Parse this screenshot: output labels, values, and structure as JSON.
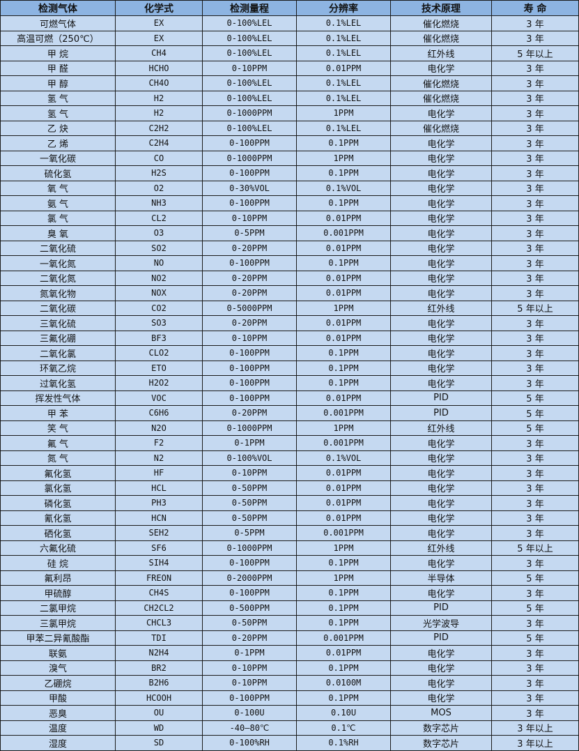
{
  "headers": [
    "检测气体",
    "化学式",
    "检测量程",
    "分辨率",
    "技术原理",
    "寿 命"
  ],
  "colors": {
    "header_bg": "#8DB4E2",
    "row_bg": "#C5D9F1",
    "border": "#1a1a1a"
  },
  "rows": [
    [
      "可燃气体",
      "EX",
      "0-100%LEL",
      "0.1%LEL",
      "催化燃烧",
      "3 年"
    ],
    [
      "高温可燃（250℃）",
      "EX",
      "0-100%LEL",
      "0.1%LEL",
      "催化燃烧",
      "3 年"
    ],
    [
      "甲 烷",
      "CH4",
      "0-100%LEL",
      "0.1%LEL",
      "红外线",
      "5 年以上"
    ],
    [
      "甲 醛",
      "HCHO",
      "0-10PPM",
      "0.01PPM",
      "电化学",
      "3 年"
    ],
    [
      "甲 醇",
      "CH4O",
      "0-100%LEL",
      "0.1%LEL",
      "催化燃烧",
      "3 年"
    ],
    [
      "氢 气",
      "H2",
      "0-100%LEL",
      "0.1%LEL",
      "催化燃烧",
      "3 年"
    ],
    [
      "氢 气",
      "H2",
      "0-1000PPM",
      "1PPM",
      "电化学",
      "3 年"
    ],
    [
      "乙 炔",
      "C2H2",
      "0-100%LEL",
      "0.1%LEL",
      "催化燃烧",
      "3 年"
    ],
    [
      "乙 烯",
      "C2H4",
      "0-100PPM",
      "0.1PPM",
      "电化学",
      "3 年"
    ],
    [
      "一氧化碳",
      "CO",
      "0-1000PPM",
      "1PPM",
      "电化学",
      "3 年"
    ],
    [
      "硫化氢",
      "H2S",
      "0-100PPM",
      "0.1PPM",
      "电化学",
      "3 年"
    ],
    [
      "氧 气",
      "O2",
      "0-30%VOL",
      "0.1%VOL",
      "电化学",
      "3 年"
    ],
    [
      "氨 气",
      "NH3",
      "0-100PPM",
      "0.1PPM",
      "电化学",
      "3 年"
    ],
    [
      "氯 气",
      "CL2",
      "0-10PPM",
      "0.01PPM",
      "电化学",
      "3 年"
    ],
    [
      "臭 氧",
      "O3",
      "0-5PPM",
      "0.001PPM",
      "电化学",
      "3 年"
    ],
    [
      "二氧化硫",
      "SO2",
      "0-20PPM",
      "0.01PPM",
      "电化学",
      "3 年"
    ],
    [
      "一氧化氮",
      "NO",
      "0-100PPM",
      "0.1PPM",
      "电化学",
      "3 年"
    ],
    [
      "二氧化氮",
      "NO2",
      "0-20PPM",
      "0.01PPM",
      "电化学",
      "3 年"
    ],
    [
      "氮氧化物",
      "NOX",
      "0-20PPM",
      "0.01PPM",
      "电化学",
      "3 年"
    ],
    [
      "二氧化碳",
      "CO2",
      "0-5000PPM",
      "1PPM",
      "红外线",
      "5 年以上"
    ],
    [
      "三氧化硫",
      "SO3",
      "0-20PPM",
      "0.01PPM",
      "电化学",
      "3 年"
    ],
    [
      "三氟化硼",
      "BF3",
      "0-10PPM",
      "0.01PPM",
      "电化学",
      "3 年"
    ],
    [
      "二氧化氯",
      "CLO2",
      "0-100PPM",
      "0.1PPM",
      "电化学",
      "3 年"
    ],
    [
      "环氧乙烷",
      "ETO",
      "0-100PPM",
      "0.1PPM",
      "电化学",
      "3 年"
    ],
    [
      "过氧化氢",
      "H2O2",
      "0-100PPM",
      "0.1PPM",
      "电化学",
      "3 年"
    ],
    [
      "挥发性气体",
      "VOC",
      "0-100PPM",
      "0.01PPM",
      "PID",
      "5 年"
    ],
    [
      "甲 苯",
      "C6H6",
      "0-20PPM",
      "0.001PPM",
      "PID",
      "5 年"
    ],
    [
      "笑 气",
      "N2O",
      "0-1000PPM",
      "1PPM",
      "红外线",
      "5 年"
    ],
    [
      "氟 气",
      "F2",
      "0-1PPM",
      "0.001PPM",
      "电化学",
      "3 年"
    ],
    [
      "氮 气",
      "N2",
      "0-100%VOL",
      "0.1%VOL",
      "电化学",
      "3 年"
    ],
    [
      "氟化氢",
      "HF",
      "0-10PPM",
      "0.01PPM",
      "电化学",
      "3 年"
    ],
    [
      "氯化氢",
      "HCL",
      "0-50PPM",
      "0.01PPM",
      "电化学",
      "3 年"
    ],
    [
      "磷化氢",
      "PH3",
      "0-50PPM",
      "0.01PPM",
      "电化学",
      "3 年"
    ],
    [
      "氰化氢",
      "HCN",
      "0-50PPM",
      "0.01PPM",
      "电化学",
      "3 年"
    ],
    [
      "硒化氢",
      "SEH2",
      "0-5PPM",
      "0.001PPM",
      "电化学",
      "3 年"
    ],
    [
      "六氟化硫",
      "SF6",
      "0-1000PPM",
      "1PPM",
      "红外线",
      "5 年以上"
    ],
    [
      "硅 烷",
      "SIH4",
      "0-100PPM",
      "0.1PPM",
      "电化学",
      "3 年"
    ],
    [
      "氟利昂",
      "FREON",
      "0-2000PPM",
      "1PPM",
      "半导体",
      "5 年"
    ],
    [
      "甲硫醇",
      "CH4S",
      "0-100PPM",
      "0.1PPM",
      "电化学",
      "3 年"
    ],
    [
      "二氯甲烷",
      "CH2CL2",
      "0-500PPM",
      "0.1PPM",
      "PID",
      "5 年"
    ],
    [
      "三氯甲烷",
      "CHCL3",
      "0-50PPM",
      "0.1PPM",
      "光学波导",
      "3 年"
    ],
    [
      "甲苯二异氰酸酯",
      "TDI",
      "0-20PPM",
      "0.001PPM",
      "PID",
      "5 年"
    ],
    [
      "联氨",
      "N2H4",
      "0-1PPM",
      "0.01PPM",
      "电化学",
      "3 年"
    ],
    [
      "溴气",
      "BR2",
      "0-10PPM",
      "0.1PPM",
      "电化学",
      "3 年"
    ],
    [
      "乙硼烷",
      "B2H6",
      "0-10PPM",
      "0.0100M",
      "电化学",
      "3 年"
    ],
    [
      "甲酸",
      "HCOOH",
      "0-100PPM",
      "0.1PPM",
      "电化学",
      "3 年"
    ],
    [
      "恶臭",
      "OU",
      "0-100U",
      "0.10U",
      "MOS",
      "3 年"
    ],
    [
      "温度",
      "WD",
      "-40—80℃",
      "0.1℃",
      "数字芯片",
      "3 年以上"
    ],
    [
      "湿度",
      "SD",
      "0-100%RH",
      "0.1%RH",
      "数字芯片",
      "3 年以上"
    ]
  ]
}
